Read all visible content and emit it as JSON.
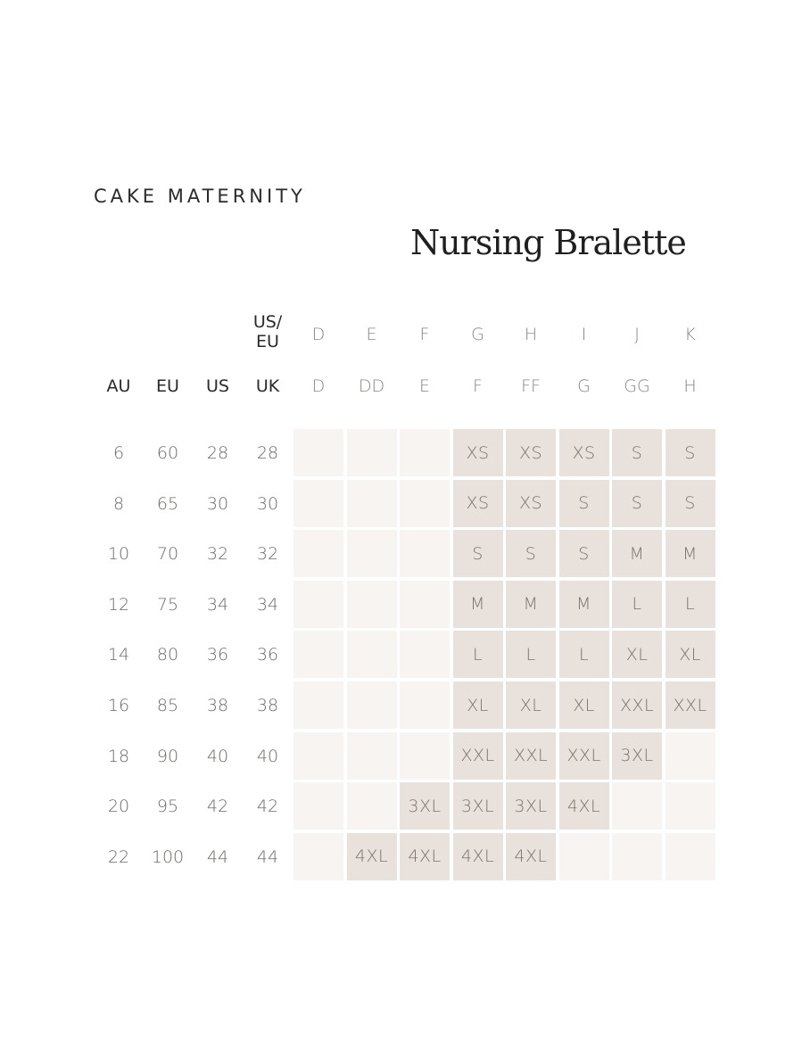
{
  "brand": "CAKE MATERNITY",
  "title": "Nursing Bralette",
  "column_headers": {
    "labels": [
      "AU",
      "EU",
      "US",
      "UK"
    ],
    "us_eu_label_line1": "US/",
    "us_eu_label_line2": "EU",
    "us_eu_cups": [
      "D",
      "E",
      "F",
      "G",
      "H",
      "I",
      "J",
      "K"
    ],
    "au_uk_cups": [
      "D",
      "DD",
      "E",
      "F",
      "FF",
      "G",
      "GG",
      "H"
    ]
  },
  "rows": [
    {
      "au": "6",
      "eu": "60",
      "us": "28",
      "uk": "28",
      "sizes": [
        "",
        "",
        "",
        "XS",
        "XS",
        "XS",
        "S",
        "S"
      ]
    },
    {
      "au": "8",
      "eu": "65",
      "us": "30",
      "uk": "30",
      "sizes": [
        "",
        "",
        "",
        "XS",
        "XS",
        "S",
        "S",
        "S"
      ]
    },
    {
      "au": "10",
      "eu": "70",
      "us": "32",
      "uk": "32",
      "sizes": [
        "",
        "",
        "",
        "S",
        "S",
        "S",
        "M",
        "M"
      ]
    },
    {
      "au": "12",
      "eu": "75",
      "us": "34",
      "uk": "34",
      "sizes": [
        "",
        "",
        "",
        "M",
        "M",
        "M",
        "L",
        "L"
      ]
    },
    {
      "au": "14",
      "eu": "80",
      "us": "36",
      "uk": "36",
      "sizes": [
        "",
        "",
        "",
        "L",
        "L",
        "L",
        "XL",
        "XL"
      ]
    },
    {
      "au": "16",
      "eu": "85",
      "us": "38",
      "uk": "38",
      "sizes": [
        "",
        "",
        "",
        "XL",
        "XL",
        "XL",
        "XXL",
        "XXL"
      ]
    },
    {
      "au": "18",
      "eu": "90",
      "us": "40",
      "uk": "40",
      "sizes": [
        "",
        "",
        "",
        "XXL",
        "XXL",
        "XXL",
        "3XL",
        ""
      ]
    },
    {
      "au": "20",
      "eu": "95",
      "us": "42",
      "uk": "42",
      "sizes": [
        "",
        "",
        "3XL",
        "3XL",
        "3XL",
        "4XL",
        "",
        ""
      ]
    },
    {
      "au": "22",
      "eu": "100",
      "us": "44",
      "uk": "44",
      "sizes": [
        "",
        "4XL",
        "4XL",
        "4XL",
        "4XL",
        "",
        "",
        ""
      ]
    }
  ],
  "colors": {
    "filled_cell": "#e9e1db",
    "empty_cell": "#f8f4f1"
  }
}
